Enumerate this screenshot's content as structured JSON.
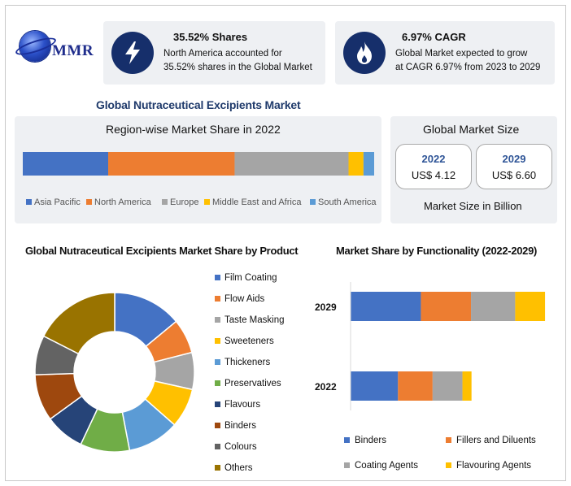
{
  "brand": {
    "logo_text": "MMR"
  },
  "stats": [
    {
      "title": "35.52% Shares",
      "line1": "North America accounted for",
      "line2": "35.52% shares in the Global Market",
      "icon": "lightning-icon"
    },
    {
      "title": "6.97% CAGR",
      "line1": "Global Market expected to grow",
      "line2": "at CAGR 6.97% from 2023 to 2029",
      "icon": "flame-icon"
    }
  ],
  "main_title": "Global Nutraceutical Excipients Market",
  "region": {
    "title": "Region-wise Market Share in 2022"
  },
  "market_size": {
    "title": "Global Market Size",
    "boxes": [
      {
        "year": "2022",
        "value": "US$ 4.12"
      },
      {
        "year": "2029",
        "value": "US$ 6.60"
      }
    ],
    "caption": "Market Size in Billion"
  },
  "product": {
    "title": "Global Nutraceutical Excipients Market Share by Product"
  },
  "functionality": {
    "title": "Market Share by Functionality (2022-2029)"
  },
  "chart_data": [
    {
      "type": "bar",
      "orientation": "horizontal-stacked",
      "title": "Region-wise Market Share in 2022",
      "series": [
        {
          "name": "Asia Pacific",
          "values": [
            24.0
          ]
        },
        {
          "name": "North America",
          "values": [
            35.52
          ]
        },
        {
          "name": "Europe",
          "values": [
            32.0
          ]
        },
        {
          "name": "Middle East and Africa",
          "values": [
            4.2
          ]
        },
        {
          "name": "South America",
          "values": [
            3.0
          ]
        }
      ],
      "legend": "bottom",
      "colors": [
        "#4472c4",
        "#ed7d31",
        "#a5a5a5",
        "#ffc000",
        "#5b9bd5"
      ]
    },
    {
      "type": "pie",
      "subtype": "donut",
      "title": "Global Nutraceutical Excipients Market Share by Product",
      "categories": [
        "Film Coating",
        "Flow Aids",
        "Taste Masking",
        "Sweeteners",
        "Thickeners",
        "Preservatives",
        "Flavours",
        "Binders",
        "Colours",
        "Others"
      ],
      "values": [
        14,
        7,
        7.5,
        8,
        10.5,
        10,
        8,
        9.5,
        8,
        17.5
      ],
      "legend": "right",
      "colors": [
        "#4472c4",
        "#ed7d31",
        "#a5a5a5",
        "#ffc000",
        "#5b9bd5",
        "#70ad47",
        "#264478",
        "#9e480e",
        "#636363",
        "#997300"
      ]
    },
    {
      "type": "bar",
      "orientation": "horizontal-stacked",
      "title": "Market Share by Functionality (2022-2029)",
      "categories": [
        "2029",
        "2022"
      ],
      "series": [
        {
          "name": "Binders",
          "values": [
            6.6,
            4.45
          ]
        },
        {
          "name": "Fillers and Diluents",
          "values": [
            4.7,
            3.25
          ]
        },
        {
          "name": "Coating Agents",
          "values": [
            4.15,
            2.8
          ]
        },
        {
          "name": "Flavouring Agents",
          "values": [
            2.8,
            0.85
          ]
        }
      ],
      "legend": "bottom",
      "colors": [
        "#4472c4",
        "#ed7d31",
        "#a5a5a5",
        "#ffc000"
      ]
    }
  ]
}
